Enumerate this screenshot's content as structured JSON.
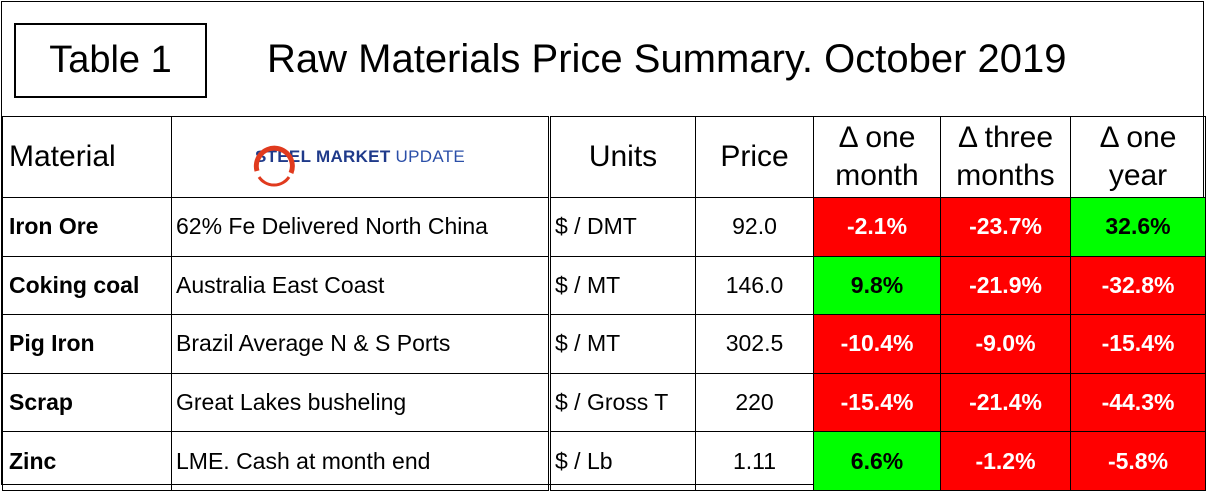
{
  "badge": "Table 1",
  "title": "Raw Materials Price Summary. October 2019",
  "logo": {
    "part1": "STEEL",
    "part2": "MARKET",
    "part3": "UPDATE"
  },
  "headers": {
    "material": "Material",
    "units": "Units",
    "price": "Price",
    "one_month": [
      "Δ one",
      "month"
    ],
    "three_months": [
      "Δ three",
      "months"
    ],
    "one_year": [
      "Δ one",
      "year"
    ]
  },
  "rows": [
    {
      "name": "Iron Ore",
      "desc": "62% Fe Delivered North China",
      "units": "$ / DMT",
      "price": "92.0",
      "m1": "-2.1%",
      "m3": "-23.7%",
      "y1": "32.6%"
    },
    {
      "name": "Coking coal",
      "desc": "Australia East Coast",
      "units": "$ / MT",
      "price": "146.0",
      "m1": "9.8%",
      "m3": "-21.9%",
      "y1": "-32.8%"
    },
    {
      "name": "Pig Iron",
      "desc": "Brazil Average N & S Ports",
      "units": "$ / MT",
      "price": "302.5",
      "m1": "-10.4%",
      "m3": "-9.0%",
      "y1": "-15.4%"
    },
    {
      "name": "Scrap",
      "desc": "Great Lakes busheling",
      "units": "$ / Gross T",
      "price": "220",
      "m1": "-15.4%",
      "m3": "-21.4%",
      "y1": "-44.3%"
    },
    {
      "name": "Zinc",
      "desc": "LME. Cash at month end",
      "units": "$ / Lb",
      "price": "1.11",
      "m1": "6.6%",
      "m3": "-1.2%",
      "y1": "-5.8%"
    }
  ],
  "colors": {
    "negative": "#ff0000",
    "positive": "#00ff00",
    "logo_blue": "#1f3a8a",
    "logo_red": "#e03a1e"
  }
}
